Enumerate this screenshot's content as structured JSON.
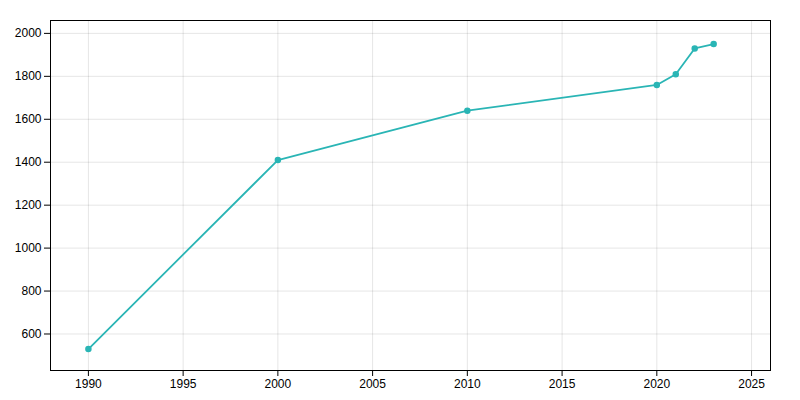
{
  "chart_data": {
    "type": "line",
    "x": [
      1990,
      2000,
      2010,
      2020,
      2021,
      2022,
      2023
    ],
    "values": [
      530,
      1410,
      1640,
      1760,
      1810,
      1930,
      1950
    ],
    "color": "#2ab5b5",
    "marker": "circle",
    "xlim": [
      1988,
      2026
    ],
    "ylim": [
      430,
      2060
    ],
    "xticks": [
      1990,
      1995,
      2000,
      2005,
      2010,
      2015,
      2020,
      2025
    ],
    "yticks": [
      600,
      800,
      1000,
      1200,
      1400,
      1600,
      1800,
      2000
    ],
    "grid": true
  }
}
